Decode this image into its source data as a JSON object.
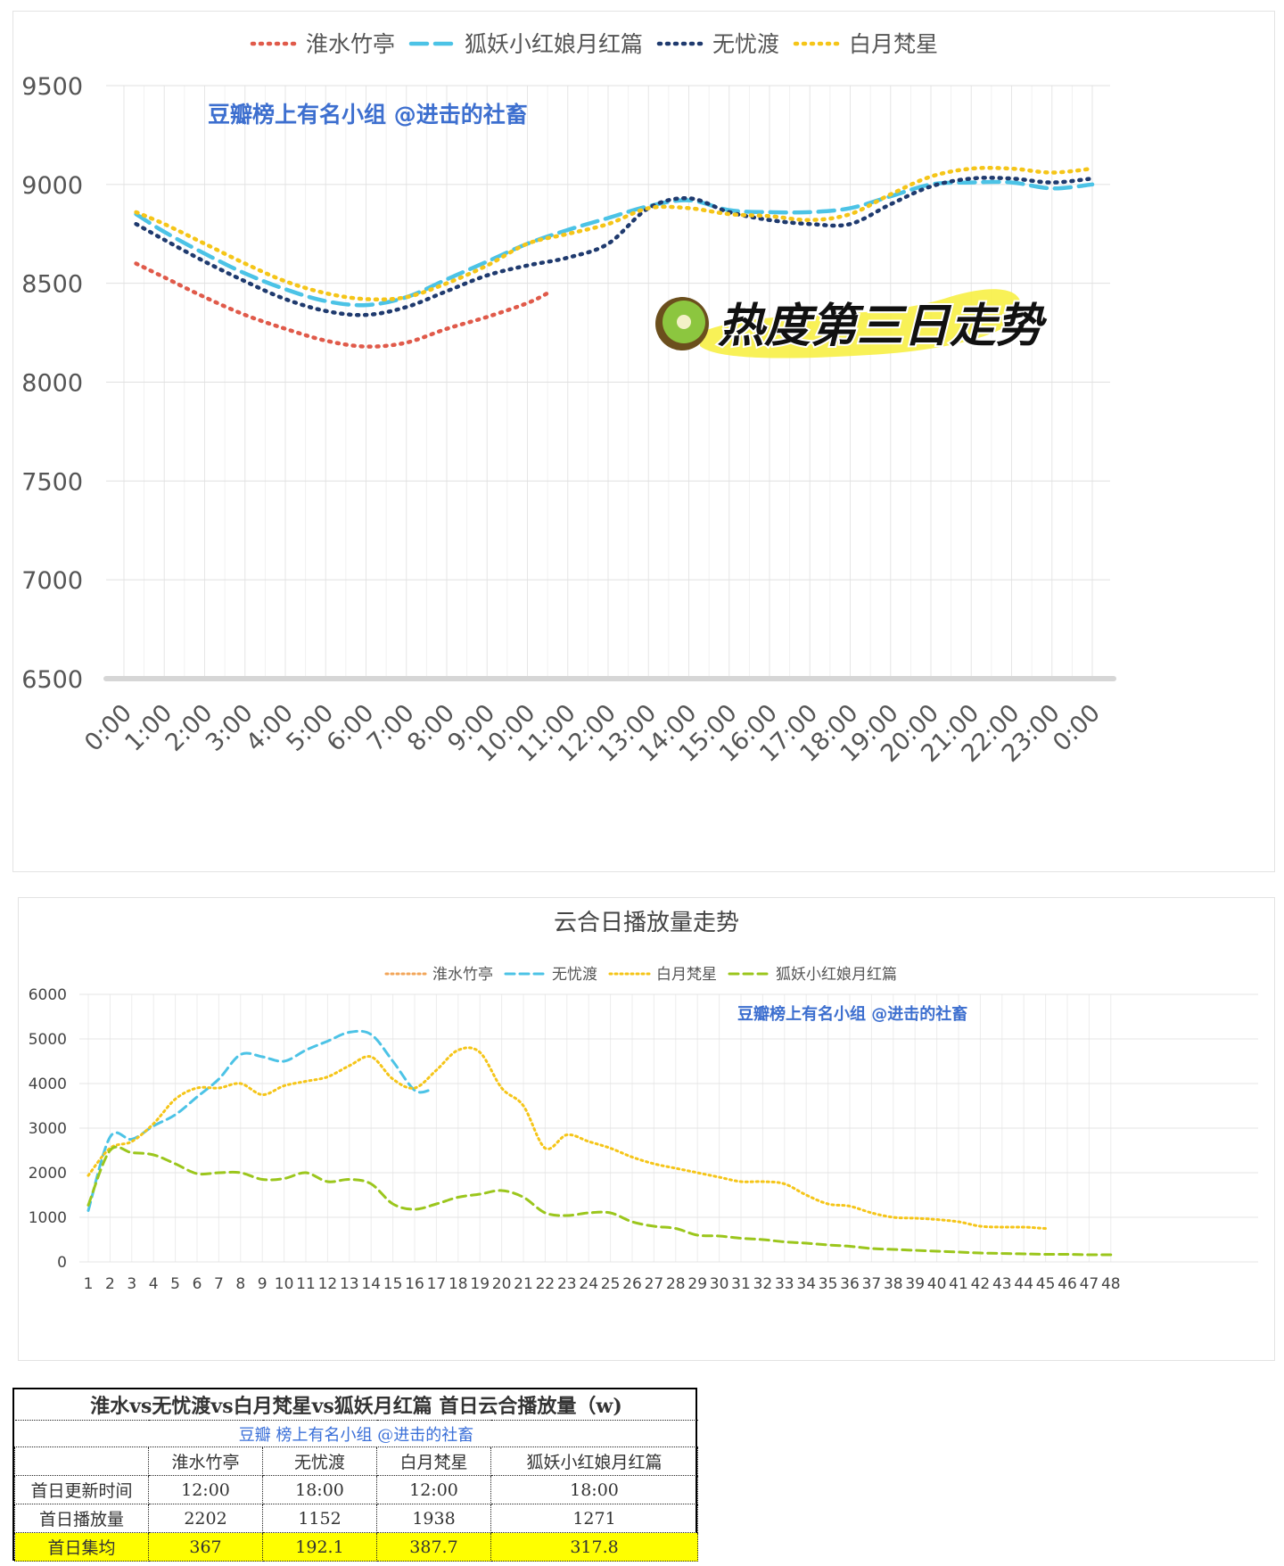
{
  "chart_data": [
    {
      "type": "line",
      "title": "",
      "legend_position": "top",
      "legend": [
        "淮水竹亭",
        "狐妖小红娘月红篇",
        "无忧渡",
        "白月梵星"
      ],
      "watermark": "豆瓣榜上有名小组 @进击的社畜",
      "overlay_text": "热度第三日走势",
      "overlay_icon": "kiwi-icon",
      "x_labels": [
        "0:00",
        "1:00",
        "2:00",
        "3:00",
        "4:00",
        "5:00",
        "6:00",
        "7:00",
        "8:00",
        "9:00",
        "10:00",
        "11:00",
        "12:00",
        "13:00",
        "14:00",
        "15:00",
        "16:00",
        "17:00",
        "18:00",
        "19:00",
        "20:00",
        "21:00",
        "22:00",
        "23:00",
        "0:00"
      ],
      "y_ticks": [
        6500,
        7000,
        7500,
        8000,
        8500,
        9000,
        9500
      ],
      "ylim": [
        6500,
        9500
      ],
      "grid": true,
      "series": [
        {
          "name": "淮水竹亭",
          "color": "#e05a4a",
          "dash": "dot",
          "x": [
            0.3,
            1,
            2,
            3,
            4,
            5,
            6,
            7,
            8,
            9,
            10,
            10.5
          ],
          "y": [
            8600,
            8530,
            8430,
            8340,
            8270,
            8210,
            8180,
            8200,
            8270,
            8330,
            8400,
            8450
          ]
        },
        {
          "name": "狐妖小红娘月红篇",
          "color": "#4cc3e6",
          "dash": "dash",
          "x": [
            0.3,
            1,
            2,
            3,
            4,
            5,
            6,
            7,
            8,
            9,
            10,
            11,
            12,
            13,
            14,
            15,
            16,
            17,
            18,
            19,
            20,
            21,
            22,
            23,
            24
          ],
          "y": [
            8850,
            8760,
            8650,
            8550,
            8470,
            8410,
            8390,
            8430,
            8520,
            8610,
            8700,
            8770,
            8830,
            8890,
            8920,
            8870,
            8860,
            8860,
            8880,
            8940,
            9000,
            9010,
            9010,
            8980,
            9000
          ]
        },
        {
          "name": "无忧渡",
          "color": "#1f3a6e",
          "dash": "dot",
          "x": [
            0.3,
            1,
            2,
            3,
            4,
            5,
            6,
            7,
            8,
            9,
            10,
            11,
            12,
            13,
            14,
            15,
            16,
            17,
            18,
            19,
            20,
            21,
            22,
            23,
            24
          ],
          "y": [
            8800,
            8720,
            8610,
            8510,
            8420,
            8360,
            8340,
            8380,
            8460,
            8540,
            8590,
            8630,
            8700,
            8880,
            8930,
            8860,
            8820,
            8800,
            8800,
            8900,
            8990,
            9030,
            9030,
            9010,
            9030
          ]
        },
        {
          "name": "白月梵星",
          "color": "#f5c518",
          "dash": "dot",
          "x": [
            0.3,
            1,
            2,
            3,
            4,
            5,
            6,
            7,
            8,
            9,
            10,
            11,
            12,
            13,
            14,
            15,
            16,
            17,
            18,
            19,
            20,
            21,
            22,
            23,
            24
          ],
          "y": [
            8860,
            8800,
            8700,
            8600,
            8510,
            8450,
            8420,
            8430,
            8500,
            8590,
            8700,
            8750,
            8800,
            8880,
            8880,
            8850,
            8840,
            8820,
            8850,
            8950,
            9040,
            9080,
            9080,
            9060,
            9080
          ]
        }
      ]
    },
    {
      "type": "line",
      "title": "云合日播放量走势",
      "legend_position": "top",
      "legend": [
        "淮水竹亭",
        "无忧渡",
        "白月梵星",
        "狐妖小红娘月红篇"
      ],
      "watermark": "豆瓣榜上有名小组 @进击的社畜",
      "x_labels": [
        "1",
        "2",
        "3",
        "4",
        "5",
        "6",
        "7",
        "8",
        "9",
        "10",
        "11",
        "12",
        "13",
        "14",
        "15",
        "16",
        "17",
        "18",
        "19",
        "20",
        "21",
        "22",
        "23",
        "24",
        "25",
        "26",
        "27",
        "28",
        "29",
        "30",
        "31",
        "32",
        "33",
        "34",
        "35",
        "36",
        "37",
        "38",
        "39",
        "40",
        "41",
        "42",
        "43",
        "44",
        "45",
        "46",
        "47",
        "48"
      ],
      "y_ticks": [
        0,
        1000,
        2000,
        3000,
        4000,
        5000,
        6000
      ],
      "ylim": [
        0,
        6000
      ],
      "grid": true,
      "series": [
        {
          "name": "淮水竹亭",
          "color": "#f2a65a",
          "dash": "dot",
          "x": [],
          "y": []
        },
        {
          "name": "无忧渡",
          "color": "#4cc3e6",
          "dash": "dash",
          "x": [
            1,
            2,
            3,
            4,
            5,
            6,
            7,
            8,
            9,
            10,
            11,
            12,
            13,
            14,
            15,
            16,
            17
          ],
          "y": [
            1150,
            2800,
            2750,
            3050,
            3300,
            3700,
            4100,
            4650,
            4600,
            4500,
            4750,
            4950,
            5150,
            5100,
            4500,
            3850,
            null
          ]
        },
        {
          "name": "白月梵星",
          "color": "#f5c518",
          "dash": "dot",
          "x": [
            1,
            2,
            3,
            4,
            5,
            6,
            7,
            8,
            9,
            10,
            11,
            12,
            13,
            14,
            15,
            16,
            17,
            18,
            19,
            20,
            21,
            22,
            23,
            24,
            25,
            26,
            27,
            28,
            29,
            30,
            31,
            32,
            33,
            34,
            35,
            36,
            37,
            38,
            39,
            40,
            41,
            42,
            43,
            44,
            45
          ],
          "y": [
            1938,
            2550,
            2700,
            3100,
            3650,
            3900,
            3900,
            4000,
            3750,
            3950,
            4050,
            4150,
            4400,
            4600,
            4100,
            3900,
            4300,
            4750,
            4700,
            3900,
            3500,
            2550,
            2850,
            2700,
            2550,
            2350,
            2200,
            2100,
            2000,
            1900,
            1800,
            1800,
            1750,
            1500,
            1300,
            1250,
            1100,
            1000,
            980,
            950,
            900,
            800,
            780,
            780,
            750
          ]
        },
        {
          "name": "狐妖小红娘月红篇",
          "color": "#9bc61c",
          "dash": "dash",
          "x": [
            1,
            2,
            3,
            4,
            5,
            6,
            7,
            8,
            9,
            10,
            11,
            12,
            13,
            14,
            15,
            16,
            17,
            18,
            19,
            20,
            21,
            22,
            23,
            24,
            25,
            26,
            27,
            28,
            29,
            30,
            31,
            32,
            33,
            34,
            35,
            36,
            37,
            38,
            39,
            40,
            41,
            42,
            43,
            44,
            45,
            46,
            47,
            48
          ],
          "y": [
            1271,
            2500,
            2450,
            2400,
            2200,
            1980,
            2000,
            2000,
            1850,
            1870,
            2000,
            1800,
            1850,
            1750,
            1300,
            1180,
            1300,
            1450,
            1520,
            1600,
            1450,
            1100,
            1040,
            1100,
            1100,
            900,
            800,
            750,
            600,
            580,
            530,
            500,
            450,
            420,
            380,
            350,
            300,
            280,
            260,
            240,
            220,
            200,
            190,
            180,
            170,
            170,
            160,
            160
          ]
        }
      ]
    },
    {
      "type": "table",
      "title": "淮水vs无忧渡vs白月梵星vs狐妖月红篇 首日云合播放量（w)",
      "credit": "豆瓣 榜上有名小组 @进击的社畜",
      "columns": [
        "",
        "淮水竹亭",
        "无忧渡",
        "白月梵星",
        "狐妖小红娘月红篇"
      ],
      "rows": [
        {
          "label": "首日更新时间",
          "values": [
            "12:00",
            "18:00",
            "12:00",
            "18:00"
          ]
        },
        {
          "label": "首日播放量",
          "values": [
            "2202",
            "1152",
            "1938",
            "1271"
          ]
        },
        {
          "label": "首日集均",
          "values": [
            "367",
            "192.1",
            "387.7",
            "317.8"
          ],
          "highlight": "#ffff00"
        }
      ]
    }
  ]
}
